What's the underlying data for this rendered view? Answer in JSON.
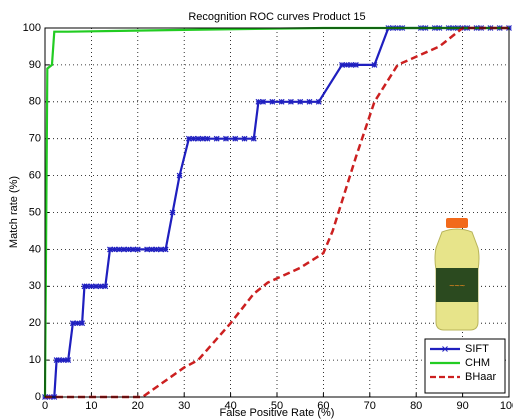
{
  "chart_data": {
    "type": "line",
    "title": "Recognition ROC curves Product 15",
    "x_label": "False Positive Rate (%)",
    "y_label": "Match rate (%)",
    "xlim": [
      0,
      100
    ],
    "ylim": [
      0,
      100
    ],
    "xticks": [
      0,
      10,
      20,
      30,
      40,
      50,
      60,
      70,
      80,
      90,
      100
    ],
    "yticks": [
      0,
      10,
      20,
      30,
      40,
      50,
      60,
      70,
      80,
      90,
      100
    ],
    "grid": true,
    "legend": "lower right",
    "series": [
      {
        "name": "SIFT",
        "color": "#1f1fbf",
        "marker": true,
        "dashed": false,
        "x": [
          0,
          1,
          2,
          2.5,
          3,
          4,
          5,
          6,
          7,
          8,
          8.5,
          9,
          10,
          11,
          12,
          13,
          14,
          15,
          16,
          17,
          18,
          19,
          20,
          22,
          23,
          24,
          25,
          26,
          27.5,
          29,
          31,
          32,
          33,
          34,
          35,
          37,
          39,
          41,
          43,
          45,
          46,
          47,
          49,
          51,
          53,
          55,
          57,
          59,
          64,
          65,
          66,
          67,
          71,
          74,
          75,
          76,
          77,
          81,
          82,
          84,
          85,
          87,
          88,
          89,
          90,
          91,
          93,
          94,
          96,
          98,
          100
        ],
        "values": [
          0,
          0,
          0,
          10,
          10,
          10,
          10,
          20,
          20,
          20,
          30,
          30,
          30,
          30,
          30,
          30,
          40,
          40,
          40,
          40,
          40,
          40,
          40,
          40,
          40,
          40,
          40,
          40,
          50,
          60,
          70,
          70,
          70,
          70,
          70,
          70,
          70,
          70,
          70,
          70,
          80,
          80,
          80,
          80,
          80,
          80,
          80,
          80,
          90,
          90,
          90,
          90,
          90,
          100,
          100,
          100,
          100,
          100,
          100,
          100,
          100,
          100,
          100,
          100,
          100,
          100,
          100,
          100,
          100,
          100,
          100
        ]
      },
      {
        "name": "CHM",
        "color": "#22cc22",
        "marker": false,
        "dashed": false,
        "x": [
          0,
          0.5,
          1.5,
          2,
          5,
          30,
          60,
          100
        ],
        "values": [
          0,
          89,
          90,
          99,
          99,
          99.5,
          100,
          100
        ]
      },
      {
        "name": "BHaar",
        "color": "#cc2020",
        "marker": false,
        "dashed": true,
        "x": [
          0,
          21,
          30,
          33,
          40,
          45,
          48,
          55,
          60,
          62,
          67,
          71,
          76,
          85,
          90,
          100
        ],
        "values": [
          0,
          0,
          8,
          10,
          20,
          28,
          31,
          35,
          39,
          45,
          65,
          80,
          90,
          95,
          100,
          100
        ]
      }
    ]
  }
}
